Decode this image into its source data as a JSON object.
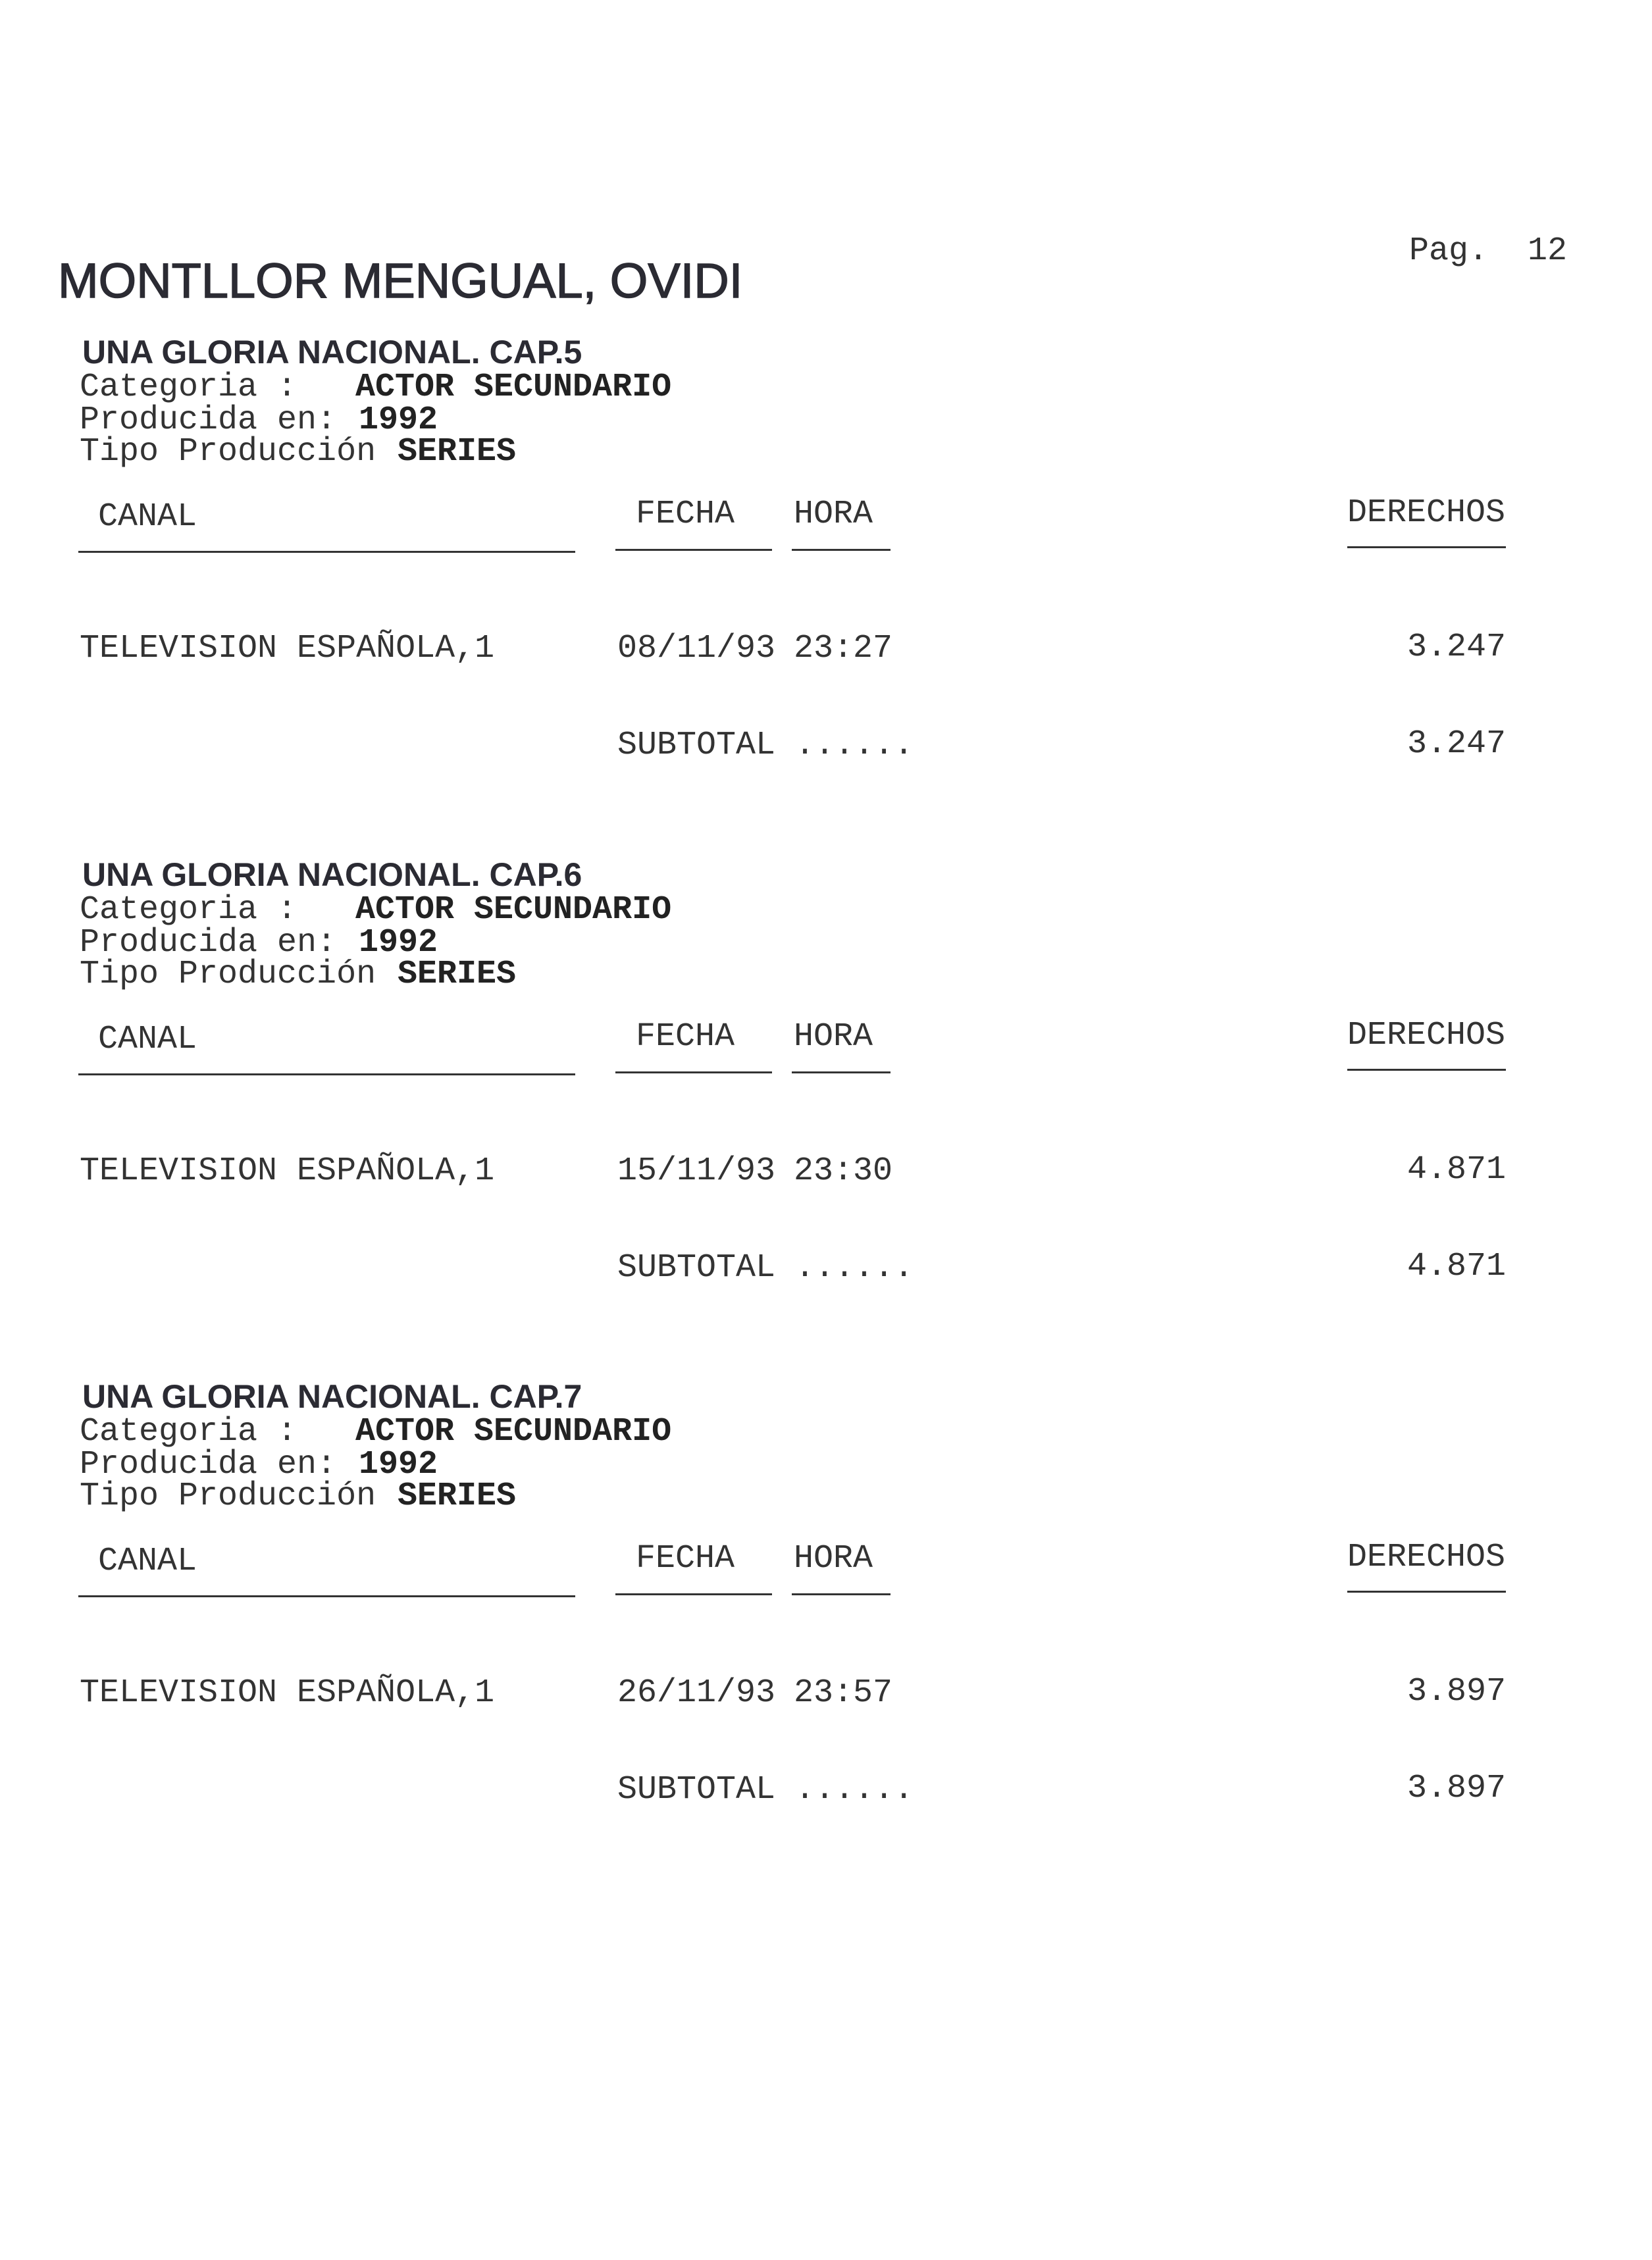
{
  "page": {
    "label": "Pag.",
    "number": "12"
  },
  "person_name": "MONTLLOR MENGUAL, OVIDI",
  "labels": {
    "categoria": "Categoria :",
    "producida": "Producida en:",
    "tipo": "Tipo Producción",
    "canal": "CANAL",
    "fecha": "FECHA",
    "hora": "HORA",
    "derechos": "DERECHOS",
    "subtotal": "SUBTOTAL ......"
  },
  "sections": [
    {
      "title": "UNA GLORIA NACIONAL. CAP.5",
      "categoria": "ACTOR SECUNDARIO",
      "producida": "1992",
      "tipo": "SERIES",
      "rows": [
        {
          "canal": "TELEVISION ESPAÑOLA,1",
          "fecha": "08/11/93",
          "hora": "23:27",
          "derechos": "3.247"
        }
      ],
      "subtotal": "3.247"
    },
    {
      "title": "UNA GLORIA NACIONAL. CAP.6",
      "categoria": "ACTOR SECUNDARIO",
      "producida": "1992",
      "tipo": "SERIES",
      "rows": [
        {
          "canal": "TELEVISION ESPAÑOLA,1",
          "fecha": "15/11/93",
          "hora": "23:30",
          "derechos": "4.871"
        }
      ],
      "subtotal": "4.871"
    },
    {
      "title": "UNA GLORIA NACIONAL. CAP.7",
      "categoria": "ACTOR SECUNDARIO",
      "producida": "1992",
      "tipo": "SERIES",
      "rows": [
        {
          "canal": "TELEVISION ESPAÑOLA,1",
          "fecha": "26/11/93",
          "hora": "23:57",
          "derechos": "3.897"
        }
      ],
      "subtotal": "3.897"
    }
  ]
}
